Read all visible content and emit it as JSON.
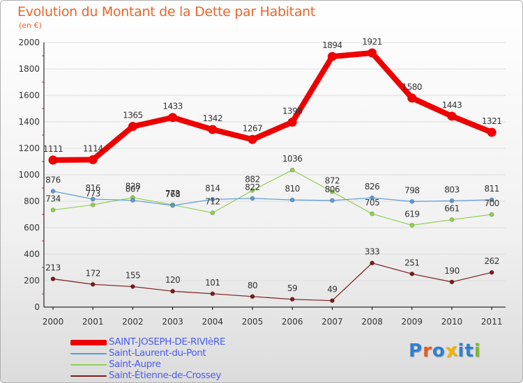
{
  "chart_data": {
    "type": "line",
    "title": "Evolution du Montant de la Dette par Habitant",
    "subtitle": "(en €)",
    "xlabel": "",
    "ylabel": "",
    "categories": [
      "2000",
      "2001",
      "2002",
      "2003",
      "2004",
      "2005",
      "2006",
      "2007",
      "2008",
      "2009",
      "2010",
      "2011"
    ],
    "ylim": [
      0,
      2000
    ],
    "yticks": [
      "0",
      "200",
      "400",
      "600",
      "800",
      "1000",
      "1200",
      "1400",
      "1600",
      "1800",
      "2000"
    ],
    "grid": true,
    "legend_position": "bottom-left",
    "series": [
      {
        "name": "SAINT-JOSEPH-DE-RIVIèRE",
        "color": "#ee0000",
        "values": [
          1111,
          1114,
          1365,
          1433,
          1342,
          1267,
          1398,
          1894,
          1921,
          1580,
          1443,
          1321
        ]
      },
      {
        "name": "Saint-Laurent-du-Pont",
        "color": "#5b9bd5",
        "values": [
          876,
          816,
          807,
          768,
          814,
          822,
          810,
          806,
          826,
          798,
          803,
          811
        ]
      },
      {
        "name": "Saint-Aupre",
        "color": "#92d050",
        "values": [
          734,
          773,
          828,
          773,
          712,
          882,
          1036,
          872,
          705,
          619,
          661,
          700
        ]
      },
      {
        "name": "Saint-Étienne-de-Crossey",
        "color": "#7b1a1a",
        "values": [
          213,
          172,
          155,
          120,
          101,
          80,
          59,
          49,
          333,
          251,
          190,
          262
        ]
      }
    ]
  },
  "logo": {
    "text": "Proxiti",
    "letters": [
      {
        "ch": "P",
        "color": "#2f7fd0"
      },
      {
        "ch": "r",
        "color": "#e65a23"
      },
      {
        "ch": "o",
        "color": "#2f7fd0"
      },
      {
        "ch": "x",
        "color": "#f0b400"
      },
      {
        "ch": "i",
        "color": "#2f7fd0"
      },
      {
        "ch": "t",
        "color": "#2f7fd0"
      },
      {
        "ch": "i",
        "color": "#7ab82d"
      }
    ]
  }
}
